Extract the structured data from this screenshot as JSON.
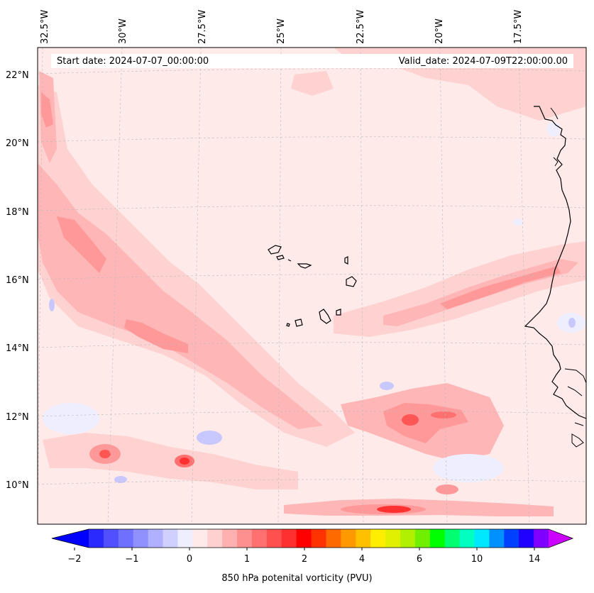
{
  "map": {
    "start_date": "Start date: 2024-07-07_00:00:00",
    "valid_date": "Valid_date: 2024-07-09T22:00:00.00",
    "lon_labels": [
      "32.5°W",
      "30°W",
      "27.5°W",
      "25°W",
      "22.5°W",
      "20°W",
      "17.5°W"
    ],
    "lat_labels": [
      "22°N",
      "20°N",
      "18°N",
      "16°N",
      "14°N",
      "12°N",
      "10°N"
    ],
    "colorbar": {
      "label": "850 hPa potenital vorticity (PVU)",
      "tick_labels": [
        "−2",
        "−1",
        "0",
        "1",
        "2",
        "4",
        "6",
        "10",
        "14"
      ],
      "colors": [
        "#0000ff",
        "#2a2aff",
        "#5050ff",
        "#7070ff",
        "#9090ff",
        "#b0b0ff",
        "#d0d0ff",
        "#eeeeff",
        "#ffe9e9",
        "#ffd0d0",
        "#ffb0b0",
        "#ff9090",
        "#ff7070",
        "#ff5050",
        "#ff3030",
        "#ff0000",
        "#ff3300",
        "#ff6a00",
        "#ff9900",
        "#ffc000",
        "#ffee00",
        "#e0f000",
        "#b0f000",
        "#70f000",
        "#00ff00",
        "#00ff70",
        "#00ffc0",
        "#00e8ff",
        "#0090ff",
        "#0040ff",
        "#2000ff",
        "#8000ff",
        "#cc00ff"
      ]
    }
  }
}
